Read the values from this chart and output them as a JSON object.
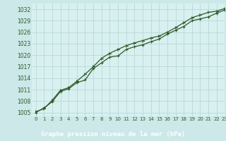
{
  "title": "Graphe pression niveau de la mer (hPa)",
  "bg_color": "#cce8e8",
  "plot_bg_color": "#d8f0f0",
  "grid_color": "#b8d8d8",
  "line_color": "#2d5a27",
  "label_bg_color": "#3a7a32",
  "label_text_color": "#ffffff",
  "tick_color": "#2d5a27",
  "xlim": [
    -0.5,
    23
  ],
  "ylim": [
    1004.0,
    1033.5
  ],
  "yticks": [
    1005,
    1008,
    1011,
    1014,
    1017,
    1020,
    1023,
    1026,
    1029,
    1032
  ],
  "xticks": [
    0,
    1,
    2,
    3,
    4,
    5,
    6,
    7,
    8,
    9,
    10,
    11,
    12,
    13,
    14,
    15,
    16,
    17,
    18,
    19,
    20,
    21,
    22,
    23
  ],
  "line1_x": [
    0,
    1,
    2,
    3,
    4,
    5,
    6,
    7,
    8,
    9,
    10,
    11,
    12,
    13,
    14,
    15,
    16,
    17,
    18,
    19,
    20,
    21,
    22,
    23
  ],
  "line1_y": [
    1005.0,
    1006.2,
    1007.8,
    1010.5,
    1011.2,
    1012.8,
    1013.5,
    1016.5,
    1018.0,
    1019.5,
    1019.8,
    1021.5,
    1022.2,
    1022.7,
    1023.5,
    1024.2,
    1025.5,
    1026.5,
    1027.5,
    1029.0,
    1029.5,
    1030.0,
    1031.0,
    1031.8
  ],
  "line2_x": [
    0,
    1,
    2,
    3,
    4,
    5,
    6,
    7,
    8,
    9,
    10,
    11,
    12,
    13,
    14,
    15,
    16,
    17,
    18,
    19,
    20,
    21,
    22,
    23
  ],
  "line2_y": [
    1005.2,
    1006.0,
    1008.2,
    1010.8,
    1011.5,
    1013.2,
    1015.0,
    1017.0,
    1019.2,
    1020.5,
    1021.5,
    1022.5,
    1023.2,
    1023.8,
    1024.5,
    1025.0,
    1026.0,
    1027.2,
    1028.5,
    1029.8,
    1030.5,
    1031.2,
    1031.5,
    1032.2
  ],
  "ytick_fontsize": 5.5,
  "xtick_fontsize": 5.0,
  "xlabel_fontsize": 6.5
}
